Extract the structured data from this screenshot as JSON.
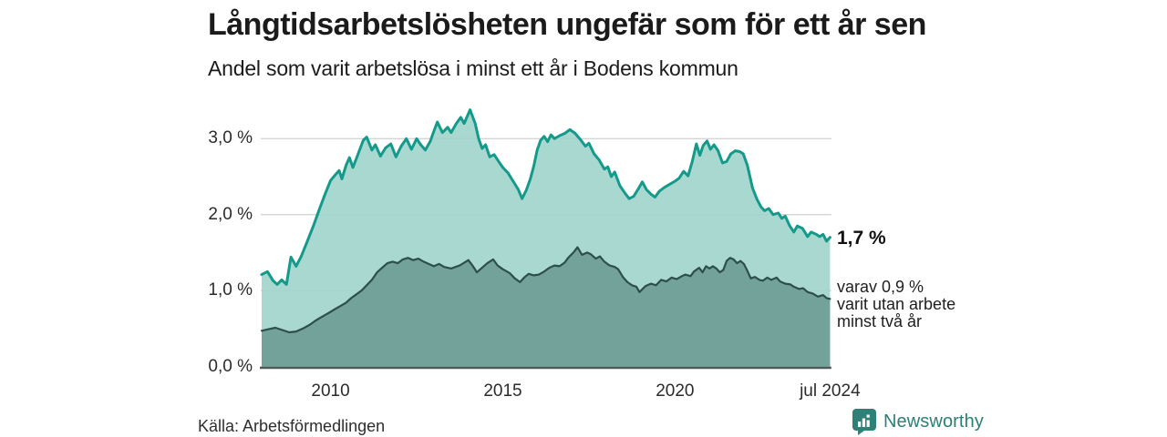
{
  "header": {
    "title": "Långtidsarbetslösheten ungefär som för ett år sen",
    "subtitle": "Andel som varit arbetslösa i minst ett år i Bodens kommun"
  },
  "chart_data": {
    "type": "area",
    "title": "Långtidsarbetslösheten ungefär som för ett år sen",
    "subtitle": "Andel som varit arbetslösa i minst ett år i Bodens kommun",
    "unit": "%",
    "xlim": [
      2008.0,
      2024.58
    ],
    "ylim": [
      0,
      3.5
    ],
    "grid": true,
    "legend_position": "none",
    "y_ticks": [
      {
        "v": 0,
        "label": "0,0 %"
      },
      {
        "v": 1,
        "label": "1,0 %"
      },
      {
        "v": 2,
        "label": "2,0 %"
      },
      {
        "v": 3,
        "label": "3,0 %"
      }
    ],
    "x_ticks": [
      {
        "t": 2010,
        "label": "2010"
      },
      {
        "t": 2015,
        "label": "2015"
      },
      {
        "t": 2020,
        "label": "2020"
      },
      {
        "t": 2024.5,
        "label": "jul 2024"
      }
    ],
    "series": [
      {
        "name": "Arbetslösa minst ett år",
        "line_color": "#149a8b",
        "fill_color": "#a0d4cb",
        "end_value": 1.7,
        "points": [
          [
            2008.0,
            1.21
          ],
          [
            2008.17,
            1.25
          ],
          [
            2008.33,
            1.13
          ],
          [
            2008.45,
            1.08
          ],
          [
            2008.58,
            1.14
          ],
          [
            2008.72,
            1.08
          ],
          [
            2008.85,
            1.44
          ],
          [
            2009.0,
            1.32
          ],
          [
            2009.15,
            1.45
          ],
          [
            2009.3,
            1.62
          ],
          [
            2009.5,
            1.85
          ],
          [
            2009.7,
            2.1
          ],
          [
            2009.85,
            2.28
          ],
          [
            2010.0,
            2.45
          ],
          [
            2010.15,
            2.53
          ],
          [
            2010.25,
            2.58
          ],
          [
            2010.33,
            2.47
          ],
          [
            2010.45,
            2.65
          ],
          [
            2010.55,
            2.75
          ],
          [
            2010.65,
            2.62
          ],
          [
            2010.8,
            2.8
          ],
          [
            2010.95,
            2.98
          ],
          [
            2011.05,
            3.02
          ],
          [
            2011.2,
            2.85
          ],
          [
            2011.3,
            2.92
          ],
          [
            2011.45,
            2.77
          ],
          [
            2011.6,
            2.88
          ],
          [
            2011.75,
            2.93
          ],
          [
            2011.9,
            2.76
          ],
          [
            2012.05,
            2.9
          ],
          [
            2012.2,
            3.0
          ],
          [
            2012.35,
            2.86
          ],
          [
            2012.5,
            3.0
          ],
          [
            2012.6,
            2.93
          ],
          [
            2012.75,
            2.85
          ],
          [
            2012.9,
            2.97
          ],
          [
            2013.0,
            3.1
          ],
          [
            2013.1,
            3.22
          ],
          [
            2013.25,
            3.08
          ],
          [
            2013.4,
            3.15
          ],
          [
            2013.5,
            3.08
          ],
          [
            2013.65,
            3.2
          ],
          [
            2013.78,
            3.28
          ],
          [
            2013.88,
            3.2
          ],
          [
            2014.05,
            3.38
          ],
          [
            2014.2,
            3.2
          ],
          [
            2014.3,
            3.0
          ],
          [
            2014.4,
            2.87
          ],
          [
            2014.5,
            2.92
          ],
          [
            2014.62,
            2.76
          ],
          [
            2014.75,
            2.79
          ],
          [
            2014.88,
            2.7
          ],
          [
            2015.0,
            2.62
          ],
          [
            2015.15,
            2.55
          ],
          [
            2015.3,
            2.44
          ],
          [
            2015.45,
            2.33
          ],
          [
            2015.56,
            2.21
          ],
          [
            2015.68,
            2.32
          ],
          [
            2015.8,
            2.47
          ],
          [
            2015.9,
            2.64
          ],
          [
            2016.0,
            2.85
          ],
          [
            2016.1,
            2.98
          ],
          [
            2016.2,
            3.03
          ],
          [
            2016.3,
            2.96
          ],
          [
            2016.4,
            3.05
          ],
          [
            2016.5,
            3.0
          ],
          [
            2016.65,
            3.04
          ],
          [
            2016.8,
            3.07
          ],
          [
            2016.95,
            3.12
          ],
          [
            2017.1,
            3.07
          ],
          [
            2017.25,
            2.99
          ],
          [
            2017.4,
            2.9
          ],
          [
            2017.5,
            2.94
          ],
          [
            2017.65,
            2.8
          ],
          [
            2017.8,
            2.72
          ],
          [
            2017.95,
            2.6
          ],
          [
            2018.05,
            2.63
          ],
          [
            2018.15,
            2.5
          ],
          [
            2018.25,
            2.56
          ],
          [
            2018.4,
            2.38
          ],
          [
            2018.55,
            2.28
          ],
          [
            2018.67,
            2.21
          ],
          [
            2018.8,
            2.24
          ],
          [
            2018.95,
            2.35
          ],
          [
            2019.05,
            2.43
          ],
          [
            2019.17,
            2.33
          ],
          [
            2019.3,
            2.27
          ],
          [
            2019.42,
            2.23
          ],
          [
            2019.55,
            2.31
          ],
          [
            2019.7,
            2.36
          ],
          [
            2019.85,
            2.4
          ],
          [
            2020.0,
            2.44
          ],
          [
            2020.12,
            2.48
          ],
          [
            2020.25,
            2.57
          ],
          [
            2020.38,
            2.51
          ],
          [
            2020.5,
            2.7
          ],
          [
            2020.62,
            2.93
          ],
          [
            2020.72,
            2.78
          ],
          [
            2020.82,
            2.91
          ],
          [
            2020.93,
            2.97
          ],
          [
            2021.03,
            2.86
          ],
          [
            2021.13,
            2.92
          ],
          [
            2021.25,
            2.84
          ],
          [
            2021.38,
            2.68
          ],
          [
            2021.5,
            2.7
          ],
          [
            2021.62,
            2.8
          ],
          [
            2021.75,
            2.84
          ],
          [
            2021.88,
            2.83
          ],
          [
            2021.98,
            2.8
          ],
          [
            2022.1,
            2.65
          ],
          [
            2022.25,
            2.35
          ],
          [
            2022.38,
            2.2
          ],
          [
            2022.5,
            2.1
          ],
          [
            2022.6,
            2.05
          ],
          [
            2022.72,
            2.08
          ],
          [
            2022.85,
            2.0
          ],
          [
            2023.0,
            2.02
          ],
          [
            2023.1,
            1.95
          ],
          [
            2023.2,
            1.98
          ],
          [
            2023.32,
            1.86
          ],
          [
            2023.45,
            1.77
          ],
          [
            2023.55,
            1.85
          ],
          [
            2023.7,
            1.82
          ],
          [
            2023.85,
            1.71
          ],
          [
            2023.95,
            1.77
          ],
          [
            2024.1,
            1.74
          ],
          [
            2024.2,
            1.71
          ],
          [
            2024.3,
            1.74
          ],
          [
            2024.4,
            1.65
          ],
          [
            2024.5,
            1.7
          ]
        ]
      },
      {
        "name": "Arbetslösa minst två år",
        "line_color": "#2d4f4b",
        "fill_color": "#6d9c95",
        "end_value": 0.9,
        "points": [
          [
            2008.0,
            0.47
          ],
          [
            2008.2,
            0.49
          ],
          [
            2008.4,
            0.51
          ],
          [
            2008.6,
            0.48
          ],
          [
            2008.8,
            0.45
          ],
          [
            2009.0,
            0.46
          ],
          [
            2009.2,
            0.5
          ],
          [
            2009.4,
            0.55
          ],
          [
            2009.55,
            0.6
          ],
          [
            2009.7,
            0.64
          ],
          [
            2009.85,
            0.68
          ],
          [
            2010.0,
            0.72
          ],
          [
            2010.15,
            0.76
          ],
          [
            2010.3,
            0.8
          ],
          [
            2010.45,
            0.84
          ],
          [
            2010.6,
            0.9
          ],
          [
            2010.75,
            0.95
          ],
          [
            2010.9,
            1.0
          ],
          [
            2011.05,
            1.07
          ],
          [
            2011.2,
            1.14
          ],
          [
            2011.35,
            1.24
          ],
          [
            2011.5,
            1.3
          ],
          [
            2011.65,
            1.36
          ],
          [
            2011.8,
            1.38
          ],
          [
            2011.95,
            1.36
          ],
          [
            2012.1,
            1.41
          ],
          [
            2012.25,
            1.43
          ],
          [
            2012.4,
            1.4
          ],
          [
            2012.55,
            1.42
          ],
          [
            2012.7,
            1.38
          ],
          [
            2012.85,
            1.35
          ],
          [
            2013.0,
            1.32
          ],
          [
            2013.15,
            1.35
          ],
          [
            2013.3,
            1.31
          ],
          [
            2013.5,
            1.29
          ],
          [
            2013.75,
            1.33
          ],
          [
            2014.0,
            1.4
          ],
          [
            2014.12,
            1.33
          ],
          [
            2014.25,
            1.24
          ],
          [
            2014.4,
            1.3
          ],
          [
            2014.55,
            1.36
          ],
          [
            2014.72,
            1.41
          ],
          [
            2014.85,
            1.33
          ],
          [
            2015.0,
            1.28
          ],
          [
            2015.2,
            1.23
          ],
          [
            2015.35,
            1.16
          ],
          [
            2015.5,
            1.11
          ],
          [
            2015.62,
            1.17
          ],
          [
            2015.75,
            1.22
          ],
          [
            2015.9,
            1.2
          ],
          [
            2016.05,
            1.21
          ],
          [
            2016.2,
            1.25
          ],
          [
            2016.35,
            1.3
          ],
          [
            2016.5,
            1.33
          ],
          [
            2016.65,
            1.32
          ],
          [
            2016.8,
            1.37
          ],
          [
            2016.9,
            1.43
          ],
          [
            2017.05,
            1.5
          ],
          [
            2017.17,
            1.57
          ],
          [
            2017.3,
            1.47
          ],
          [
            2017.45,
            1.5
          ],
          [
            2017.55,
            1.48
          ],
          [
            2017.7,
            1.42
          ],
          [
            2017.82,
            1.45
          ],
          [
            2017.95,
            1.38
          ],
          [
            2018.1,
            1.33
          ],
          [
            2018.25,
            1.31
          ],
          [
            2018.35,
            1.28
          ],
          [
            2018.5,
            1.17
          ],
          [
            2018.62,
            1.11
          ],
          [
            2018.75,
            1.07
          ],
          [
            2018.88,
            1.05
          ],
          [
            2018.97,
            0.98
          ],
          [
            2019.06,
            1.02
          ],
          [
            2019.15,
            1.06
          ],
          [
            2019.3,
            1.09
          ],
          [
            2019.45,
            1.07
          ],
          [
            2019.6,
            1.14
          ],
          [
            2019.75,
            1.12
          ],
          [
            2019.9,
            1.17
          ],
          [
            2020.05,
            1.15
          ],
          [
            2020.2,
            1.19
          ],
          [
            2020.3,
            1.21
          ],
          [
            2020.45,
            1.19
          ],
          [
            2020.55,
            1.25
          ],
          [
            2020.7,
            1.3
          ],
          [
            2020.8,
            1.24
          ],
          [
            2020.9,
            1.32
          ],
          [
            2021.0,
            1.29
          ],
          [
            2021.1,
            1.32
          ],
          [
            2021.2,
            1.29
          ],
          [
            2021.3,
            1.24
          ],
          [
            2021.4,
            1.27
          ],
          [
            2021.5,
            1.39
          ],
          [
            2021.6,
            1.43
          ],
          [
            2021.7,
            1.41
          ],
          [
            2021.8,
            1.36
          ],
          [
            2021.9,
            1.39
          ],
          [
            2022.0,
            1.35
          ],
          [
            2022.1,
            1.26
          ],
          [
            2022.2,
            1.16
          ],
          [
            2022.32,
            1.18
          ],
          [
            2022.45,
            1.14
          ],
          [
            2022.55,
            1.13
          ],
          [
            2022.68,
            1.17
          ],
          [
            2022.8,
            1.14
          ],
          [
            2022.95,
            1.17
          ],
          [
            2023.05,
            1.12
          ],
          [
            2023.2,
            1.09
          ],
          [
            2023.35,
            1.08
          ],
          [
            2023.45,
            1.05
          ],
          [
            2023.6,
            1.02
          ],
          [
            2023.72,
            1.03
          ],
          [
            2023.85,
            0.98
          ],
          [
            2024.0,
            0.96
          ],
          [
            2024.15,
            0.92
          ],
          [
            2024.3,
            0.94
          ],
          [
            2024.4,
            0.9
          ],
          [
            2024.5,
            0.89
          ]
        ]
      }
    ],
    "annotations": {
      "end_value_primary": "1,7 %",
      "end_note_lines": [
        "varav 0,9 %",
        "varit utan arbete",
        "minst två år"
      ]
    }
  },
  "footer": {
    "source": "Källa: Arbetsförmedlingen",
    "brand": "Newsworthy"
  },
  "colors": {
    "line_1yr": "#149a8b",
    "fill_1yr": "#a9d8d0",
    "line_2yr": "#2d4f4b",
    "fill_2yr": "#78a69f",
    "gridline": "#d4d4d4",
    "axis_line": "#4f5b58",
    "brand_teal": "#2b7f76",
    "text": "#1b1b1b"
  }
}
